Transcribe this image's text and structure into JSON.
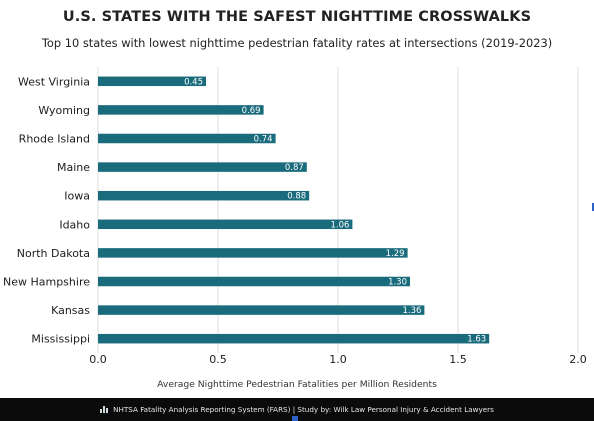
{
  "chart_data": {
    "type": "bar",
    "orientation": "horizontal",
    "title": "U.S. STATES WITH THE SAFEST NIGHTTIME CROSSWALKS",
    "subtitle": "Top 10 states with lowest nighttime pedestrian fatality rates at intersections (2019-2023)",
    "xlabel": "Average Nighttime Pedestrian Fatalities per Million Residents",
    "ylabel": "",
    "categories": [
      "West Virginia",
      "Wyoming",
      "Rhode Island",
      "Maine",
      "Iowa",
      "Idaho",
      "North Dakota",
      "New Hampshire",
      "Kansas",
      "Mississippi"
    ],
    "values": [
      0.45,
      0.69,
      0.74,
      0.87,
      0.88,
      1.06,
      1.29,
      1.3,
      1.36,
      1.63
    ],
    "value_labels": [
      "0.45",
      "0.69",
      "0.74",
      "0.87",
      "0.88",
      "1.06",
      "1.29",
      "1.30",
      "1.36",
      "1.63"
    ],
    "xlim": [
      0,
      2.0
    ],
    "xticks": [
      0,
      0.5,
      1.0,
      1.5,
      2.0
    ],
    "xtick_labels": [
      "0.0",
      "0.5",
      "1.0",
      "1.5",
      "2.0"
    ],
    "grid": true,
    "legend": "none",
    "bar_color": "#1a6b7c"
  },
  "footer": {
    "source_text": "NHTSA Fatality Analysis Reporting System (FARS) | Study by: Wilk Law Personal Injury & Accident Lawyers",
    "icon": "bar-chart-icon"
  }
}
